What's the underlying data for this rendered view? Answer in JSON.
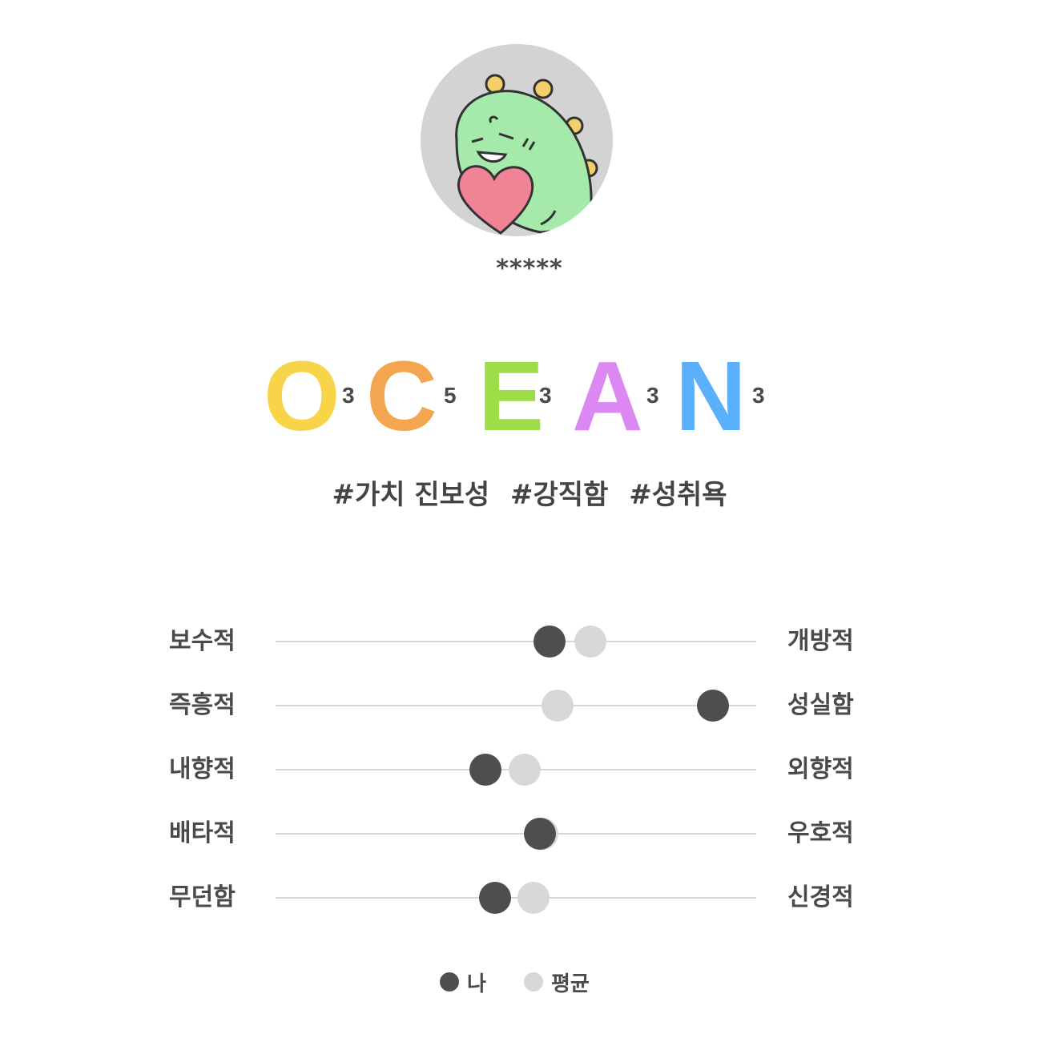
{
  "profile": {
    "username": "*****"
  },
  "ocean": [
    {
      "letter": "O",
      "score": "3",
      "color": "#f8d548"
    },
    {
      "letter": "C",
      "score": "5",
      "color": "#f3a64f"
    },
    {
      "letter": "E",
      "score": "3",
      "color": "#9ddd48"
    },
    {
      "letter": "A",
      "score": "3",
      "color": "#dc88f3"
    },
    {
      "letter": "N",
      "score": "3",
      "color": "#5ab0fb"
    }
  ],
  "tags": [
    "#가치 진보성",
    "#강직함",
    "#성취욕"
  ],
  "traits": [
    {
      "left": "보수적",
      "right": "개방적",
      "me": 0.57,
      "avg": 0.655
    },
    {
      "left": "즉흥적",
      "right": "성실함",
      "me": 0.91,
      "avg": 0.587
    },
    {
      "left": "내향적",
      "right": "외향적",
      "me": 0.437,
      "avg": 0.518
    },
    {
      "left": "배타적",
      "right": "우호적",
      "me": 0.55,
      "avg": 0.555
    },
    {
      "left": "무던함",
      "right": "신경적",
      "me": 0.457,
      "avg": 0.537
    }
  ],
  "legend": {
    "me_label": "나",
    "avg_label": "평균",
    "me_color": "#4e4e4e",
    "avg_color": "#d8d8d8"
  }
}
